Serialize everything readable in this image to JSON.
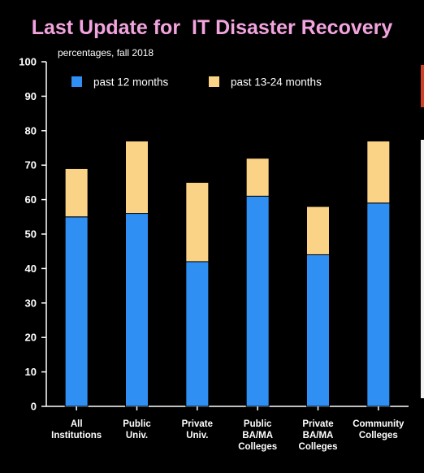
{
  "title": "Last Update for  IT Disaster Recovery",
  "subtitle": "percentages, fall 2018",
  "colors": {
    "background": "#000000",
    "title": "#f3a4df",
    "series_12": "#2f8ff2",
    "series_13_24": "#fbd386",
    "text": "#ffffff"
  },
  "chart_data": {
    "type": "bar",
    "stacked": true,
    "categories": [
      [
        "All",
        "Institutions"
      ],
      [
        "Public",
        "Univ."
      ],
      [
        "Private",
        "Univ."
      ],
      [
        "Public",
        "BA/MA",
        "Colleges"
      ],
      [
        "Private",
        "BA/MA",
        "Colleges"
      ],
      [
        "Community",
        "Colleges"
      ]
    ],
    "series": [
      {
        "name": "past 12 months",
        "color": "#2f8ff2",
        "values": [
          55,
          56,
          42,
          61,
          44,
          59
        ]
      },
      {
        "name": "past 13-24 months",
        "color": "#fbd386",
        "values": [
          14,
          21,
          23,
          11,
          14,
          18
        ]
      }
    ],
    "ylim": [
      0,
      100
    ],
    "yticks": [
      0,
      10,
      20,
      30,
      40,
      50,
      60,
      70,
      80,
      90,
      100
    ],
    "legend_position": "top-left",
    "grid": false
  }
}
